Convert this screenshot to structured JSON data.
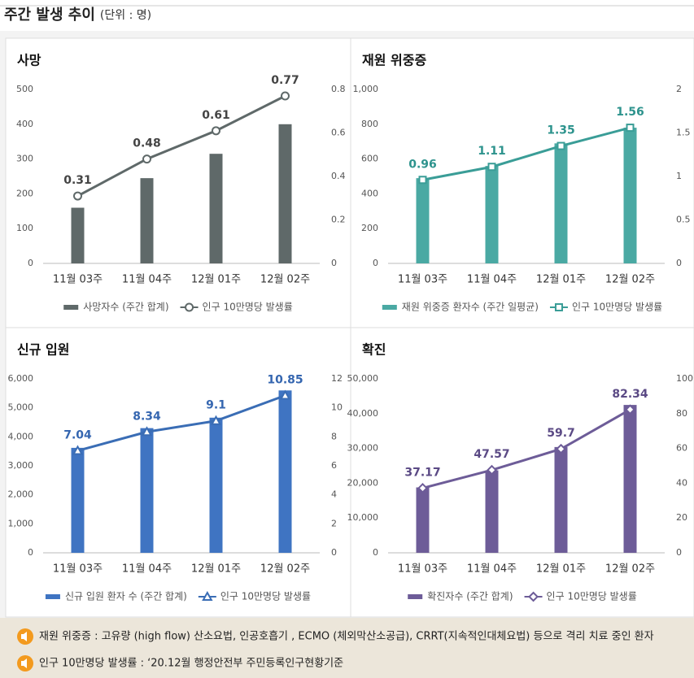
{
  "header": {
    "title": "주간 발생 추이",
    "unit": "(단위 : 명)"
  },
  "chart_data": [
    {
      "type": "bar-line",
      "title": "사망",
      "categories": [
        "11월 03주",
        "11월 04주",
        "12월 01주",
        "12월 02주"
      ],
      "series": [
        {
          "name": "사망자수 (주간 합계)",
          "color": "#5f6969",
          "values": [
            160,
            245,
            315,
            400
          ]
        },
        {
          "name": "인구 10만명당 발생률",
          "color": "#5f6969",
          "axis": "y2",
          "marker": "circle",
          "label_color": "#444444",
          "values": [
            0.31,
            0.48,
            0.61,
            0.77
          ]
        }
      ],
      "ylim": [
        0,
        500
      ],
      "yticks": [
        0,
        100,
        200,
        300,
        400,
        500
      ],
      "y2lim": [
        0,
        0.8
      ],
      "y2ticks": [
        0,
        0.2,
        0.4,
        0.6,
        0.8
      ],
      "grid": false
    },
    {
      "type": "bar-line",
      "title": "재원 위중증",
      "categories": [
        "11월 03주",
        "11월 04주",
        "12월 01주",
        "12월 02주"
      ],
      "series": [
        {
          "name": "재원 위중증 환자수 (주간 일평균)",
          "color": "#4aa9a3",
          "values": [
            490,
            560,
            690,
            780
          ]
        },
        {
          "name": "인구 10만명당 발생률",
          "color": "#3a9d97",
          "axis": "y2",
          "marker": "square",
          "label_color": "#2d938d",
          "values": [
            0.96,
            1.11,
            1.35,
            1.56
          ]
        }
      ],
      "ylim": [
        0,
        1000
      ],
      "yticks": [
        0,
        200,
        400,
        600,
        800,
        {
          "value": 1000,
          "label": "1,000"
        }
      ],
      "y2lim": [
        0,
        2
      ],
      "y2ticks": [
        0,
        0.5,
        1,
        1.5,
        2
      ],
      "grid": false
    },
    {
      "type": "bar-line",
      "title": "신규 입원",
      "categories": [
        "11월 03주",
        "11월 04주",
        "12월 01주",
        "12월 02주"
      ],
      "series": [
        {
          "name": "신규 입원 환자 수 (주간 합계)",
          "color": "#3f74c2",
          "values": [
            3620,
            4300,
            4660,
            5600
          ]
        },
        {
          "name": "인구 10만명당 발생률",
          "color": "#3a6db5",
          "axis": "y2",
          "marker": "triangle",
          "label_color": "#3566b0",
          "values": [
            7.04,
            8.34,
            9.1,
            10.85
          ]
        }
      ],
      "ylim": [
        0,
        6000
      ],
      "yticks": [
        0,
        {
          "value": 1000,
          "label": "1,000"
        },
        {
          "value": 2000,
          "label": "2,000"
        },
        {
          "value": 3000,
          "label": "3,000"
        },
        {
          "value": 4000,
          "label": "4,000"
        },
        {
          "value": 5000,
          "label": "5,000"
        },
        {
          "value": 6000,
          "label": "6,000"
        }
      ],
      "y2lim": [
        0,
        12
      ],
      "y2ticks": [
        0,
        2,
        4,
        6,
        8,
        10,
        12
      ],
      "grid": false
    },
    {
      "type": "bar-line",
      "title": "확진",
      "categories": [
        "11월 03주",
        "11월 04주",
        "12월 01주",
        "12월 02주"
      ],
      "series": [
        {
          "name": "확진자수 (주간 합계)",
          "color": "#6d5c98",
          "values": [
            18800,
            23700,
            30400,
            42500
          ]
        },
        {
          "name": "인구 10만명당 발생률",
          "color": "#6d5c98",
          "axis": "y2",
          "marker": "diamond",
          "label_color": "#5b4a85",
          "values": [
            37.17,
            47.57,
            59.7,
            82.34
          ]
        }
      ],
      "ylim": [
        0,
        50000
      ],
      "yticks": [
        0,
        {
          "value": 10000,
          "label": "10,000"
        },
        {
          "value": 20000,
          "label": "20,000"
        },
        {
          "value": 30000,
          "label": "30,000"
        },
        {
          "value": 40000,
          "label": "40,000"
        },
        {
          "value": 50000,
          "label": "50,000"
        }
      ],
      "y2lim": [
        0,
        100
      ],
      "y2ticks": [
        0,
        20,
        40,
        60,
        80,
        100
      ],
      "grid": false
    }
  ],
  "notes": [
    "재원 위중증 : 고유량 (high flow) 산소요법, 인공호흡기 , ECMO (체외막산소공급), CRRT(지속적인대체요법) 등으로 격리 치료 중인 환자",
    "인구 10만명당 발생률 : ‘20.12월 행정안전부 주민등록인구현황기준"
  ]
}
